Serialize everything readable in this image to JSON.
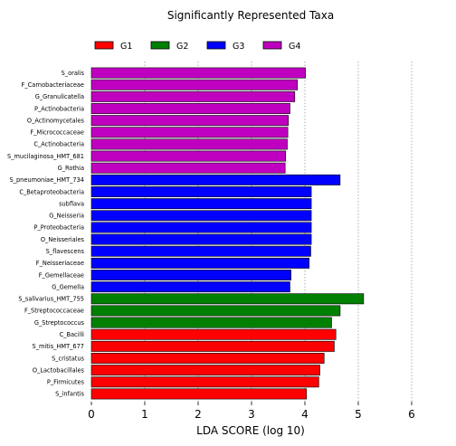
{
  "chart_data": {
    "type": "bar",
    "orientation": "horizontal",
    "title": "Significantly Represented Taxa",
    "xlabel": "LDA SCORE (log 10)",
    "ylabel": "",
    "xlim": [
      0,
      6
    ],
    "xticks": [
      0,
      1,
      2,
      3,
      4,
      5,
      6
    ],
    "grid": "vertical dashed at x ticks",
    "legend_placement": "top",
    "groups": [
      {
        "name": "G1",
        "color": "#ff0000"
      },
      {
        "name": "G2",
        "color": "#008000"
      },
      {
        "name": "G3",
        "color": "#0000ff"
      },
      {
        "name": "G4",
        "color": "#c000c0"
      }
    ],
    "bars": [
      {
        "label": "S_oralis",
        "value": 4.01,
        "group": "G4"
      },
      {
        "label": "F_Carnobacteriaceae",
        "value": 3.86,
        "group": "G4"
      },
      {
        "label": "G_Granulicatella",
        "value": 3.81,
        "group": "G4"
      },
      {
        "label": "P_Actinobacteria",
        "value": 3.72,
        "group": "G4"
      },
      {
        "label": "O_Actinomycetales",
        "value": 3.69,
        "group": "G4"
      },
      {
        "label": "F_Micrococcaceae",
        "value": 3.68,
        "group": "G4"
      },
      {
        "label": "C_Actinobacteria",
        "value": 3.67,
        "group": "G4"
      },
      {
        "label": "S_mucilaginosa_HMT_681",
        "value": 3.64,
        "group": "G4"
      },
      {
        "label": "G_Rothia",
        "value": 3.63,
        "group": "G4"
      },
      {
        "label": "S_pneumoniae_HMT_734",
        "value": 4.66,
        "group": "G3"
      },
      {
        "label": "C_Betaproteobacteria",
        "value": 4.12,
        "group": "G3"
      },
      {
        "label": "subflava",
        "value": 4.12,
        "group": "G3"
      },
      {
        "label": "G_Neisseria",
        "value": 4.12,
        "group": "G3"
      },
      {
        "label": "P_Proteobacteria",
        "value": 4.12,
        "group": "G3"
      },
      {
        "label": "O_Neisseriales",
        "value": 4.12,
        "group": "G3"
      },
      {
        "label": "S_flavescens",
        "value": 4.11,
        "group": "G3"
      },
      {
        "label": "F_Neisseriaceae",
        "value": 4.08,
        "group": "G3"
      },
      {
        "label": "F_Gemellaceae",
        "value": 3.74,
        "group": "G3"
      },
      {
        "label": "G_Gemella",
        "value": 3.72,
        "group": "G3"
      },
      {
        "label": "S_salivarius_HMT_755",
        "value": 5.1,
        "group": "G2"
      },
      {
        "label": "F_Streptococcaceae",
        "value": 4.66,
        "group": "G2"
      },
      {
        "label": "G_Streptococcus",
        "value": 4.5,
        "group": "G2"
      },
      {
        "label": "C_Bacilli",
        "value": 4.58,
        "group": "G1"
      },
      {
        "label": "S_mitis_HMT_677",
        "value": 4.55,
        "group": "G1"
      },
      {
        "label": "S_cristatus",
        "value": 4.36,
        "group": "G1"
      },
      {
        "label": "O_Lactobacillales",
        "value": 4.28,
        "group": "G1"
      },
      {
        "label": "P_Firmicutes",
        "value": 4.26,
        "group": "G1"
      },
      {
        "label": "S_infantis",
        "value": 4.03,
        "group": "G1"
      }
    ]
  }
}
